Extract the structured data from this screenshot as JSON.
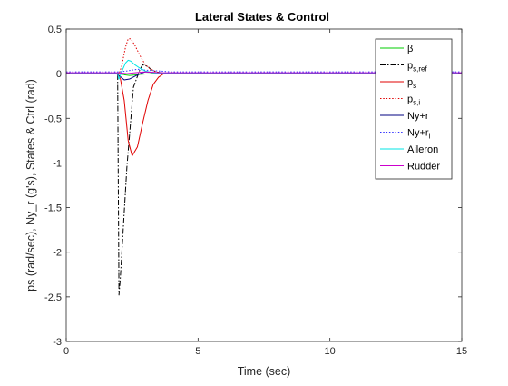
{
  "chart_data": {
    "type": "line",
    "title": "Lateral States & Control",
    "xlabel": "Time (sec)",
    "ylabel": "ps (rad/sec), Ny_r (g's), States & Ctrl (rad)",
    "xlim": [
      0,
      15
    ],
    "ylim": [
      -3,
      0.5
    ],
    "xticks": [
      0,
      5,
      10,
      15
    ],
    "xtick_labels": [
      "0",
      "5",
      "10",
      "15"
    ],
    "yticks": [
      -3,
      -2.5,
      -2,
      -1.5,
      -1,
      -0.5,
      0,
      0.5
    ],
    "ytick_labels": [
      "-3",
      "-2.5",
      "-2",
      "-1.5",
      "-1",
      "-0.5",
      "0",
      "0.5"
    ],
    "grid": false,
    "legend_position": "top-right",
    "series": [
      {
        "name": "β",
        "color": "#00cc00",
        "dash": "solid",
        "x": [
          0,
          1.9,
          2.0,
          2.2,
          2.4,
          2.6,
          2.8,
          3.0,
          3.3,
          3.7,
          4.5,
          15
        ],
        "y": [
          0,
          0,
          0,
          -0.012,
          -0.02,
          -0.015,
          -0.008,
          -0.003,
          0,
          0.002,
          0,
          0
        ]
      },
      {
        "name": "p_s,ref",
        "color": "#000000",
        "dash": "dashdot",
        "x": [
          0,
          1.95,
          2.0,
          2.05,
          2.3,
          2.55,
          2.8,
          2.9,
          3.0,
          3.1,
          3.2,
          3.4,
          3.6,
          4.0,
          15
        ],
        "y": [
          0,
          0,
          -2.48,
          -2.3,
          -1.05,
          -0.15,
          0.05,
          0.1,
          0.09,
          0.08,
          0.05,
          0.02,
          0.01,
          0,
          0
        ]
      },
      {
        "name": "p_s",
        "color": "#e00000",
        "dash": "solid",
        "x": [
          0,
          1.95,
          2.05,
          2.2,
          2.35,
          2.5,
          2.7,
          2.9,
          3.1,
          3.3,
          3.5,
          3.7,
          4.0,
          4.5,
          15
        ],
        "y": [
          0,
          0,
          -0.05,
          -0.3,
          -0.75,
          -0.92,
          -0.82,
          -0.55,
          -0.3,
          -0.12,
          -0.04,
          0,
          0.01,
          0,
          0
        ]
      },
      {
        "name": "p_s,i",
        "color": "#e00000",
        "dash": "dotted",
        "x": [
          0,
          2.0,
          2.1,
          2.25,
          2.35,
          2.45,
          2.6,
          2.8,
          3.0,
          3.2,
          3.5,
          3.8,
          4.2,
          15
        ],
        "y": [
          0,
          0,
          0.08,
          0.3,
          0.39,
          0.39,
          0.32,
          0.2,
          0.1,
          0.05,
          0.01,
          0,
          0,
          0
        ]
      },
      {
        "name": "Ny+r",
        "color": "#000080",
        "dash": "solid",
        "x": [
          0,
          1.9,
          2.0,
          2.2,
          2.4,
          2.6,
          2.8,
          3.0,
          3.4,
          4.0,
          15
        ],
        "y": [
          0,
          0,
          -0.02,
          -0.07,
          -0.06,
          -0.03,
          0,
          0.02,
          0.01,
          0,
          0
        ]
      },
      {
        "name": "Ny+r_i",
        "color": "#3333ff",
        "dash": "dotted",
        "x": [
          0,
          2.0,
          2.3,
          2.7,
          3.0,
          3.5,
          4.0,
          15
        ],
        "y": [
          0.02,
          0.02,
          0.03,
          0.05,
          0.04,
          0.03,
          0.02,
          0.02
        ]
      },
      {
        "name": "Aileron",
        "color": "#00e5e5",
        "dash": "solid",
        "x": [
          0,
          1.95,
          2.0,
          2.1,
          2.25,
          2.35,
          2.45,
          2.6,
          2.8,
          3.0,
          3.3,
          3.6,
          15
        ],
        "y": [
          0,
          0,
          -0.06,
          0.02,
          0.12,
          0.15,
          0.14,
          0.1,
          0.06,
          0.03,
          0.01,
          0,
          0
        ]
      },
      {
        "name": "Rudder",
        "color": "#cc00cc",
        "dash": "solid",
        "x": [
          0,
          2.0,
          2.3,
          2.6,
          3.0,
          3.5,
          15
        ],
        "y": [
          0.01,
          0.01,
          0.0,
          0.01,
          0.02,
          0.01,
          0.01
        ]
      }
    ],
    "legend": {
      "entries": [
        {
          "main": "β",
          "sub": ""
        },
        {
          "main": "p",
          "sub": "s,ref"
        },
        {
          "main": "p",
          "sub": "s"
        },
        {
          "main": "p",
          "sub": "s,i"
        },
        {
          "main": "Ny+r",
          "sub": ""
        },
        {
          "main": "Ny+r",
          "sub": "i"
        },
        {
          "main": "Aileron",
          "sub": ""
        },
        {
          "main": "Rudder",
          "sub": ""
        }
      ]
    }
  }
}
